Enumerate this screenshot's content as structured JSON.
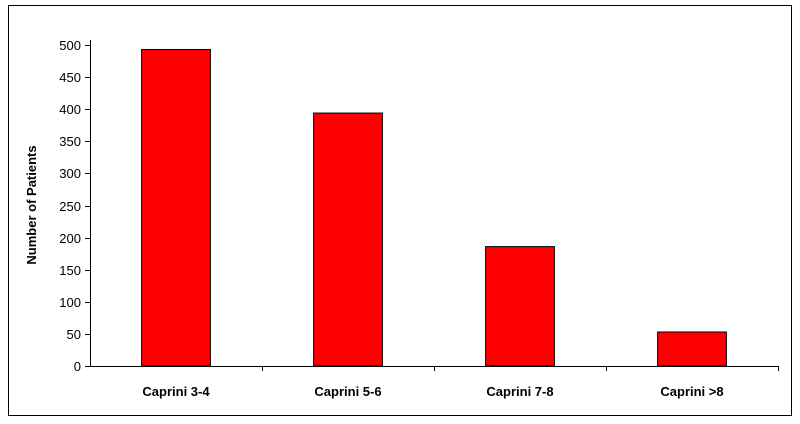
{
  "chart_data": {
    "type": "bar",
    "title": "",
    "xlabel": "",
    "ylabel": "Number of Patients",
    "categories": [
      "Caprini 3-4",
      "Caprini 5-6",
      "Caprini 7-8",
      "Caprini >8"
    ],
    "values": [
      493,
      394,
      186,
      53
    ],
    "ylim": [
      0,
      500
    ],
    "yticks": [
      "0",
      "50",
      "100",
      "150",
      "200",
      "250",
      "300",
      "350",
      "400",
      "450",
      "500"
    ],
    "grid": false,
    "legend": "none",
    "bar_color": "#ff0000",
    "bar_edge_color": "#000000"
  }
}
